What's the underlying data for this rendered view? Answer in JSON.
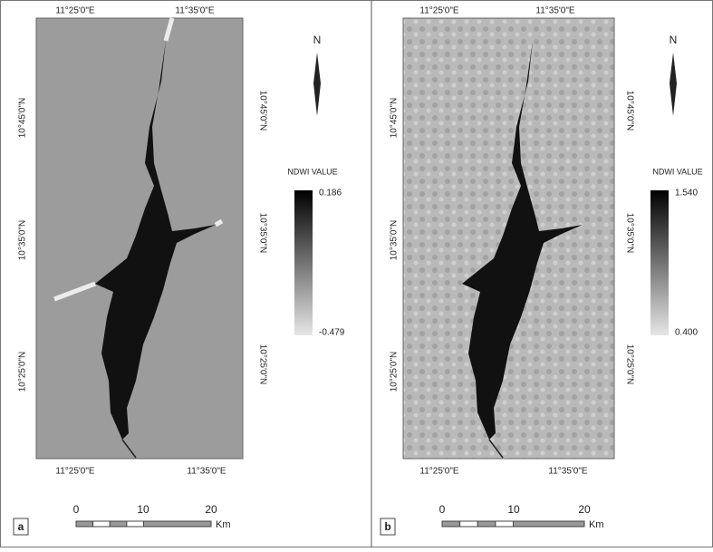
{
  "panels": [
    {
      "label": "a",
      "top_lon": [
        "11°25'0\"E",
        "11°35'0\"E"
      ],
      "bottom_lon": [
        "11°25'0\"E",
        "11°35'0\"E"
      ],
      "left_lat": [
        "10°45'0\"N",
        "10°35'0\"N",
        "10°25'0\"N"
      ],
      "right_lat": [
        "10°45'0\"N",
        "10°35'0\"N",
        "10°25'0\"N"
      ],
      "north": "N",
      "legend_title": "NDWI VALUE",
      "legend_max": "0.186",
      "legend_min": "-0.479",
      "scale_labels": [
        "0",
        "10",
        "20"
      ],
      "scale_unit": "Km"
    },
    {
      "label": "b",
      "top_lon": [
        "11°25'0\"E",
        "11°35'0\"E"
      ],
      "bottom_lon": [
        "11°25'0\"E",
        "11°35'0\"E"
      ],
      "left_lat": [
        "10°45'0\"N",
        "10°35'0\"N",
        "10°25'0\"N"
      ],
      "right_lat": [
        "10°45'0\"N",
        "10°35'0\"N",
        "10°25'0\"N"
      ],
      "north": "N",
      "legend_title": "NDWI VALUE",
      "legend_max": "1.540",
      "legend_min": "0.400",
      "scale_labels": [
        "0",
        "10",
        "20"
      ],
      "scale_unit": "Km"
    }
  ]
}
